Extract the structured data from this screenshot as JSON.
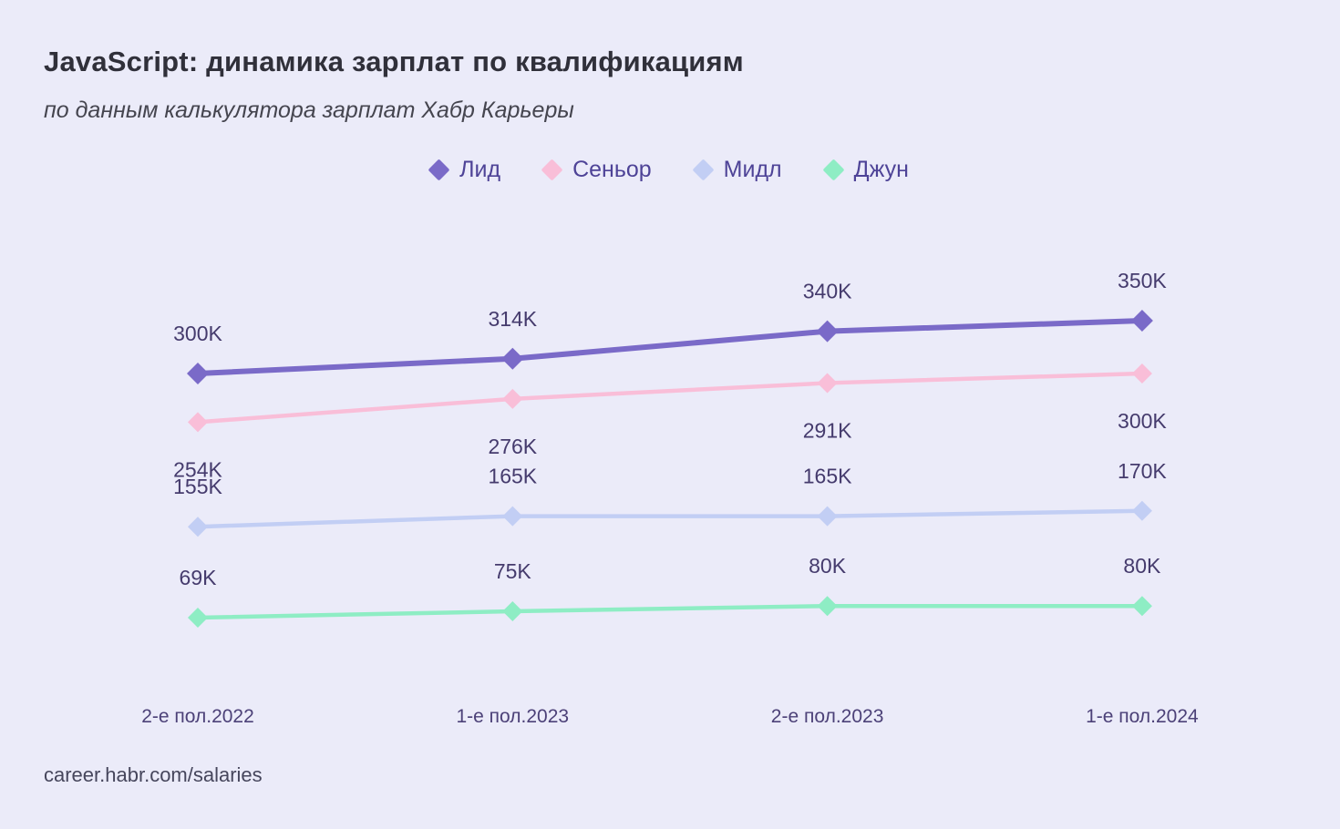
{
  "header": {
    "title": "JavaScript: динамика зарплат по квалификациям",
    "subtitle": "по данным калькулятора зарплат Хабр Карьеры"
  },
  "footer": {
    "source": "career.habr.com/salaries"
  },
  "colors": {
    "background": "#EBEBF9",
    "title": "#30303A",
    "subtitle": "#45454F",
    "value_label": "#453B6D",
    "axis_label": "#4C4178",
    "legend_text": "#4E4397",
    "source": "#46465C"
  },
  "chart_data": {
    "type": "line",
    "title": "JavaScript: динамика зарплат по квалификациям",
    "subtitle": "по данным калькулятора зарплат Хабр Карьеры",
    "xlabel": "",
    "ylabel": "",
    "grid": false,
    "legend_position": "top-center",
    "ylim": [
      0,
      400
    ],
    "categories": [
      "2-е пол.2022",
      "1-е пол.2023",
      "2-е пол.2023",
      "1-е пол.2024"
    ],
    "series": [
      {
        "key": "lead",
        "name": "Лид",
        "color": "#7A6AC8",
        "values": [
          300,
          314,
          340,
          350
        ],
        "labels": [
          "300K",
          "314K",
          "340K",
          "350K"
        ],
        "label_position": "above"
      },
      {
        "key": "senior",
        "name": "Сеньор",
        "color": "#F9BED8",
        "values": [
          254,
          276,
          291,
          300
        ],
        "labels": [
          "254K",
          "276K",
          "291K",
          "300K"
        ],
        "label_position": "below"
      },
      {
        "key": "middle",
        "name": "Мидл",
        "color": "#C2CEF4",
        "values": [
          155,
          165,
          165,
          170
        ],
        "labels": [
          "155K",
          "165K",
          "165K",
          "170K"
        ],
        "label_position": "above"
      },
      {
        "key": "junior",
        "name": "Джун",
        "color": "#8EEDC4",
        "values": [
          69,
          75,
          80,
          80
        ],
        "labels": [
          "69K",
          "75K",
          "80K",
          "80K"
        ],
        "label_position": "above"
      }
    ]
  }
}
